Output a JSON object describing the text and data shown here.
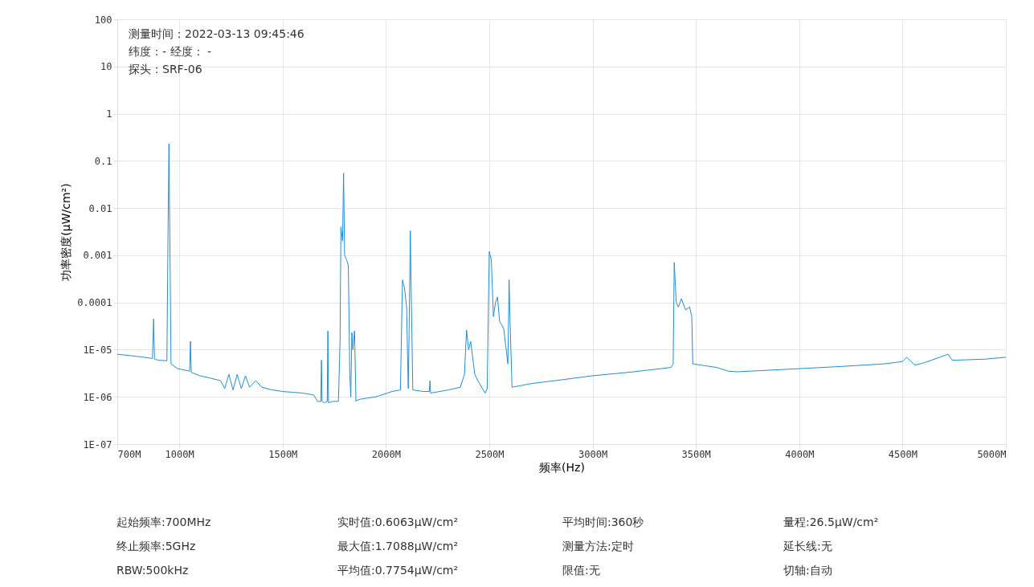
{
  "chart_data": {
    "type": "line",
    "xlabel": "频率(Hz)",
    "ylabel": "功率密度(μW/cm²)",
    "log": "y",
    "grid": true,
    "marker": "none",
    "line_style": "solid",
    "xlim": [
      700,
      5000
    ],
    "xticks": [
      {
        "value": 700,
        "label": "700M"
      },
      {
        "value": 1000,
        "label": "1000M"
      },
      {
        "value": 1500,
        "label": "1500M"
      },
      {
        "value": 2000,
        "label": "2000M"
      },
      {
        "value": 2500,
        "label": "2500M"
      },
      {
        "value": 3000,
        "label": "3000M"
      },
      {
        "value": 3500,
        "label": "3500M"
      },
      {
        "value": 4000,
        "label": "4000M"
      },
      {
        "value": 4500,
        "label": "4500M"
      },
      {
        "value": 5000,
        "label": "5000M"
      }
    ],
    "ylim": [
      1e-07,
      100
    ],
    "yticks": [
      {
        "value": 1e-07,
        "label": "1E-07"
      },
      {
        "value": 1e-06,
        "label": "1E-06"
      },
      {
        "value": 1e-05,
        "label": "1E-05"
      },
      0.0001,
      0.001,
      0.01,
      0.1,
      1,
      10,
      100
    ],
    "series": [
      {
        "color": "#1f8fd6",
        "x": [
          700,
          760,
          820,
          870,
          876,
          880,
          884,
          900,
          940,
          946,
          950,
          954,
          960,
          990,
          1050,
          1054,
          1058,
          1100,
          1150,
          1200,
          1220,
          1240,
          1260,
          1280,
          1300,
          1320,
          1340,
          1370,
          1400,
          1450,
          1500,
          1550,
          1600,
          1650,
          1670,
          1685,
          1688,
          1691,
          1700,
          1716,
          1719,
          1722,
          1740,
          1770,
          1778,
          1782,
          1790,
          1795,
          1800,
          1810,
          1818,
          1825,
          1830,
          1835,
          1840,
          1848,
          1855,
          1860,
          1880,
          1950,
          2030,
          2070,
          2080,
          2090,
          2100,
          2108,
          2112,
          2118,
          2122,
          2130,
          2180,
          2210,
          2213,
          2216,
          2300,
          2360,
          2380,
          2390,
          2400,
          2410,
          2430,
          2450,
          2480,
          2490,
          2500,
          2510,
          2520,
          2530,
          2540,
          2550,
          2570,
          2590,
          2596,
          2600,
          2610,
          2700,
          2850,
          3000,
          3200,
          3380,
          3390,
          3395,
          3405,
          3415,
          3430,
          3450,
          3470,
          3480,
          3485,
          3540,
          3600,
          3657,
          3700,
          3813,
          4020,
          4200,
          4410,
          4500,
          4520,
          4560,
          4600,
          4680,
          4720,
          4740,
          4760,
          4900,
          5000
        ],
        "values": [
          8e-06,
          7.5e-06,
          7e-06,
          6.5e-06,
          4.5e-05,
          6.3e-06,
          6.2e-06,
          6e-06,
          5.8e-06,
          0.005,
          0.23,
          0.003,
          5e-06,
          4e-06,
          3.5e-06,
          1.5e-05,
          3.3e-06,
          2.8e-06,
          2.5e-06,
          2.2e-06,
          1.5e-06,
          3e-06,
          1.4e-06,
          3e-06,
          1.5e-06,
          2.8e-06,
          1.6e-06,
          2.2e-06,
          1.6e-06,
          1.4e-06,
          1.3e-06,
          1.25e-06,
          1.2e-06,
          1.1e-06,
          8e-07,
          8e-07,
          6e-06,
          8e-07,
          7.5e-07,
          8e-07,
          2.5e-05,
          7.5e-07,
          8e-07,
          8e-07,
          1.5e-05,
          0.004,
          0.002,
          0.055,
          0.001,
          0.0008,
          0.0006,
          3e-06,
          1e-06,
          2.3e-05,
          1e-05,
          2.5e-05,
          8e-07,
          8.5e-07,
          9e-07,
          1e-06,
          1.3e-06,
          1.4e-06,
          0.0003,
          0.0002,
          8e-05,
          1.5e-06,
          2e-05,
          0.0033,
          0.0002,
          1.4e-06,
          1.3e-06,
          1.3e-06,
          2.2e-06,
          1.2e-06,
          1.4e-06,
          1.6e-06,
          3e-06,
          2.6e-05,
          1e-05,
          1.5e-05,
          3e-06,
          2e-06,
          1.2e-06,
          1.5e-06,
          0.0012,
          0.0008,
          5e-05,
          0.0001,
          0.00013,
          4e-05,
          2.8e-05,
          5e-06,
          0.0003,
          5e-05,
          1.6e-06,
          1.9e-06,
          2.3e-06,
          2.8e-06,
          3.4e-06,
          4.2e-06,
          5e-06,
          0.0007,
          0.0001,
          8e-05,
          0.00012,
          7e-05,
          8e-05,
          5e-05,
          5e-06,
          4.6e-06,
          4.2e-06,
          3.5e-06,
          3.4e-06,
          3.6e-06,
          4e-06,
          4.4e-06,
          5e-06,
          5.6e-06,
          6.9e-06,
          4.7e-06,
          5.2e-06,
          6.9e-06,
          8e-06,
          6e-06,
          6e-06,
          6.3e-06,
          6.9e-06
        ]
      }
    ],
    "annotations": [
      "测量时间：2022-03-13 09:45:46",
      "纬度：- 经度： -",
      "探头：SRF-06",
      "起始频率:700MHz",
      "实时值:0.6063μW/cm²",
      "平均时间:360秒",
      "量程:26.5μW/cm²",
      "终止频率:5GHz",
      "最大值:1.7088μW/cm²",
      "测量方法:定时",
      "延长线:无",
      "RBW:500kHz",
      "平均值:0.7754μW/cm²",
      "限值:无",
      "切轴:自动"
    ]
  }
}
